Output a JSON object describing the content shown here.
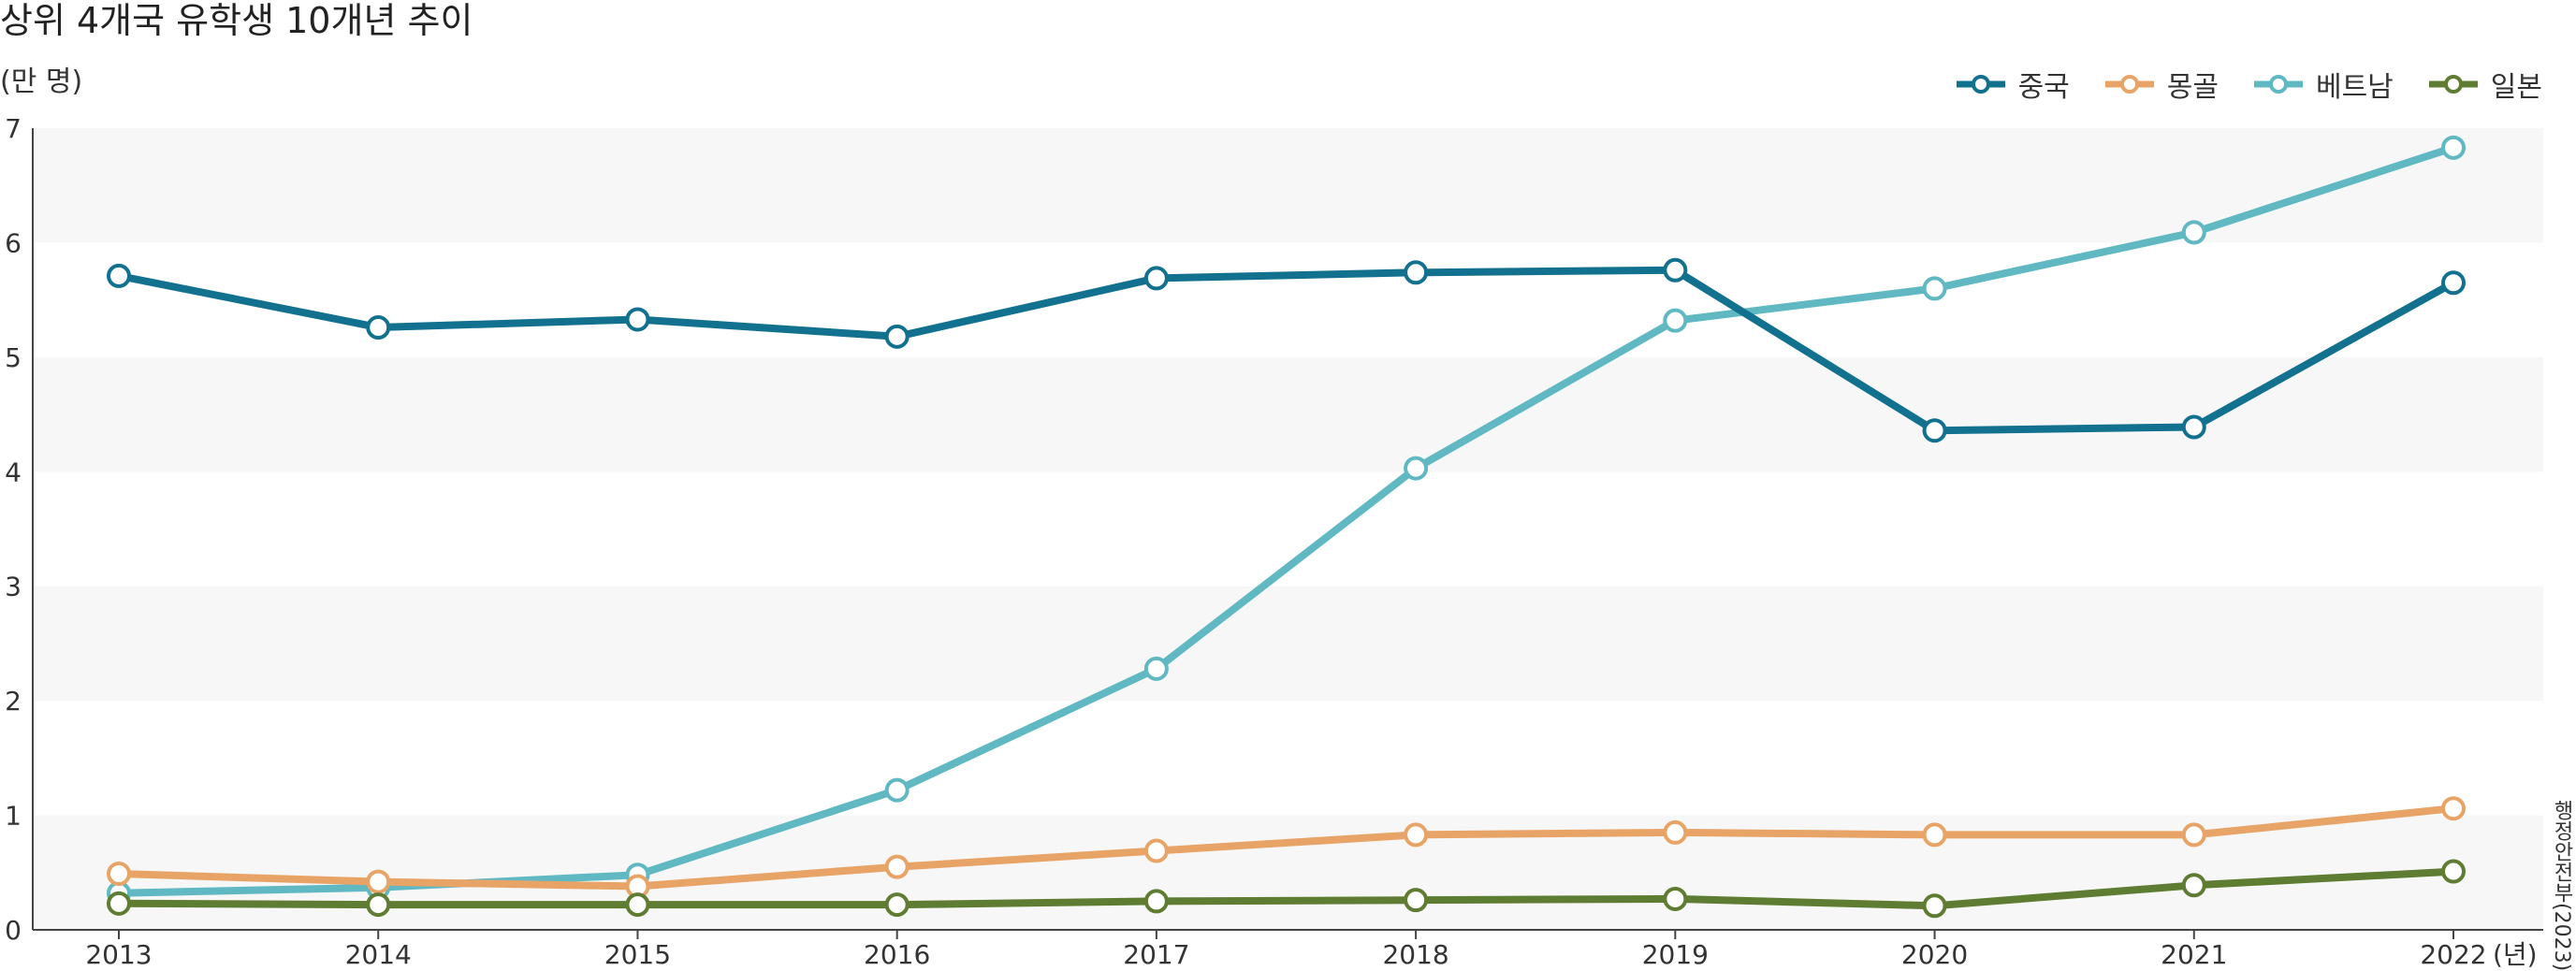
{
  "chart_data": {
    "type": "line",
    "title": "상위 4개국 유학생 10개년 추이",
    "y_unit_label": "(만 명)",
    "x_unit_label": "(년)",
    "source": "행정안전부(2023)",
    "x": [
      "2013",
      "2014",
      "2015",
      "2016",
      "2017",
      "2018",
      "2019",
      "2020",
      "2021",
      "2022"
    ],
    "ylim": [
      0,
      7
    ],
    "y_ticks": [
      "0",
      "1",
      "2",
      "3",
      "4",
      "5",
      "6",
      "7"
    ],
    "legend_position": "top-right",
    "grid": "alternating horizontal bands",
    "series": [
      {
        "name": "중국",
        "color": "#12718f",
        "values": [
          5.71,
          5.26,
          5.33,
          5.18,
          5.69,
          5.74,
          5.76,
          4.36,
          4.39,
          5.65
        ]
      },
      {
        "name": "몽골",
        "color": "#e8a466",
        "values": [
          0.49,
          0.42,
          0.38,
          0.55,
          0.69,
          0.83,
          0.85,
          0.83,
          0.83,
          1.06
        ]
      },
      {
        "name": "베트남",
        "color": "#5fb8c2",
        "values": [
          0.32,
          0.37,
          0.48,
          1.22,
          2.28,
          4.03,
          5.32,
          5.6,
          6.09,
          6.83
        ]
      },
      {
        "name": "일본",
        "color": "#5e7c32",
        "values": [
          0.23,
          0.22,
          0.22,
          0.22,
          0.25,
          0.26,
          0.27,
          0.21,
          0.39,
          0.51
        ]
      }
    ]
  }
}
